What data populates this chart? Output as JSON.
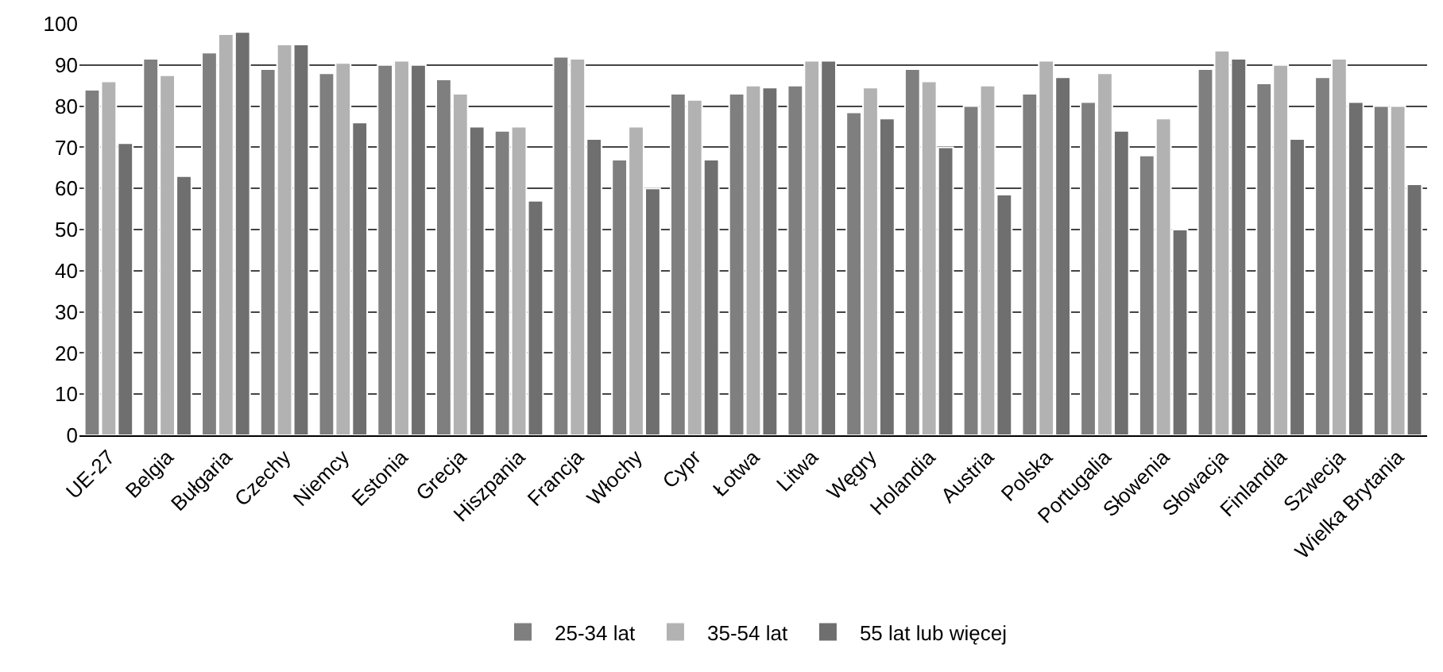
{
  "chart_data": {
    "type": "bar",
    "categories": [
      "UE-27",
      "Belgia",
      "Bułgaria",
      "Czechy",
      "Niemcy",
      "Estonia",
      "Grecja",
      "Hiszpania",
      "Francja",
      "Włochy",
      "Cypr",
      "Łotwa",
      "Litwa",
      "Węgry",
      "Holandia",
      "Austria",
      "Polska",
      "Portugalia",
      "Słowenia",
      "Słowacja",
      "Finlandia",
      "Szwecja",
      "Wielka Brytania"
    ],
    "series": [
      {
        "name": "25-34 lat",
        "color": "#7f7f7f",
        "values": [
          84,
          91.5,
          93,
          89,
          88,
          90,
          86.5,
          74,
          92,
          67,
          83,
          83,
          85,
          78.5,
          89,
          80,
          83,
          81,
          68,
          89,
          85.5,
          87,
          80
        ]
      },
      {
        "name": "35-54 lat",
        "color": "#b2b2b2",
        "values": [
          86,
          87.5,
          97.5,
          95,
          90.5,
          91,
          83,
          75,
          91.5,
          75,
          81.5,
          85,
          91,
          84.5,
          86,
          85,
          91,
          88,
          77,
          93.5,
          90,
          91.5,
          80
        ]
      },
      {
        "name": "55 lat lub więcej",
        "color": "#6f6f6f",
        "values": [
          71,
          63,
          98,
          95,
          76,
          90,
          75,
          57,
          72,
          60,
          67,
          84.5,
          91,
          77,
          70,
          58.5,
          87,
          74,
          50,
          91.5,
          72,
          81,
          61
        ]
      }
    ],
    "ylim": [
      0,
      100
    ],
    "yticks": [
      0,
      10,
      20,
      30,
      40,
      50,
      60,
      70,
      80,
      90,
      100
    ],
    "grid": "y",
    "legend": "bottom"
  }
}
